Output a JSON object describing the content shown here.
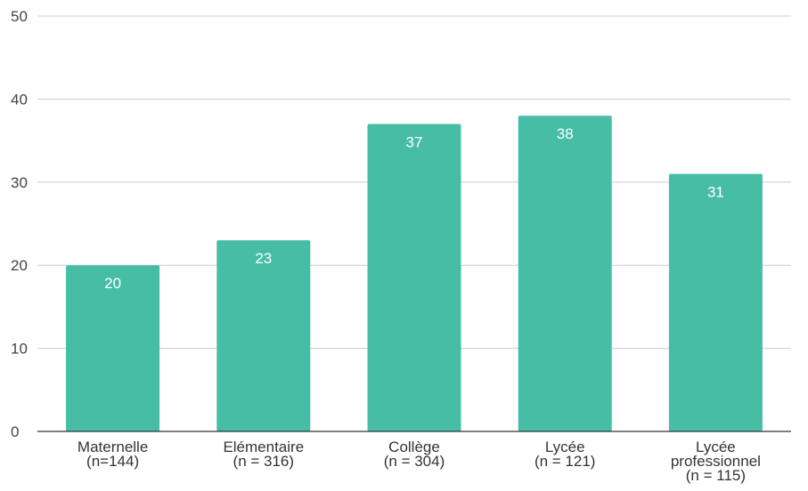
{
  "chart_data": {
    "type": "bar",
    "title": "",
    "xlabel": "",
    "ylabel": "",
    "categories": [
      [
        "Maternelle",
        "(n=144)"
      ],
      [
        "Elémentaire",
        "(n = 316)"
      ],
      [
        "Collège",
        "(n = 304)"
      ],
      [
        "Lycée",
        "(n = 121)"
      ],
      [
        "Lycée",
        "professionnel",
        "(n = 115)"
      ]
    ],
    "values": [
      20,
      23,
      37,
      38,
      31
    ],
    "ylim": [
      0,
      50
    ],
    "yticks": [
      0,
      10,
      20,
      30,
      40,
      50
    ],
    "grid": true,
    "data_labels": true,
    "bar_color": "#47bda6"
  }
}
